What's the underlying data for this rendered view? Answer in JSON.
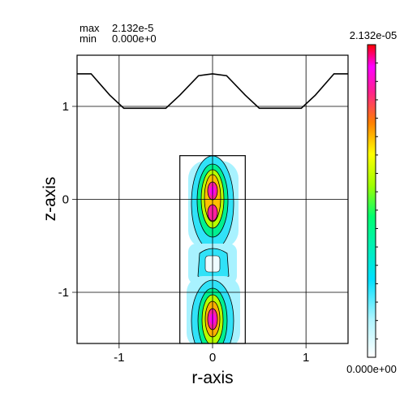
{
  "info": {
    "max_label": "max",
    "max_value": "2.132e-5",
    "min_label": "min",
    "min_value": "0.000e+0"
  },
  "colorbar": {
    "max_label": "2.132e-05",
    "min_label": "0.000e+00",
    "colors": [
      "#ffffff",
      "#00e0ff",
      "#00ff60",
      "#a0ff00",
      "#ffff00",
      "#ff8000",
      "#ff2080",
      "#ff00ff",
      "#ff0000"
    ]
  },
  "chart_data": {
    "type": "heatmap",
    "title": "",
    "xlabel": "r-axis",
    "ylabel": "z-axis",
    "xlim": [
      -1.45,
      1.45
    ],
    "ylim": [
      -1.55,
      1.55
    ],
    "xticks": [
      -1,
      0,
      1
    ],
    "yticks": [
      -1,
      0,
      1
    ],
    "xtick_labels": [
      "-1",
      "0",
      "1"
    ],
    "ytick_labels": [
      "-1",
      "0",
      "1"
    ],
    "grid": true,
    "value_range": [
      0,
      2.132e-05
    ],
    "domain_box": {
      "x": [
        -0.35,
        0.35
      ],
      "y": [
        -1.55,
        0.47
      ]
    },
    "boundary_curve": {
      "x": [
        -1.45,
        -1.3,
        -1.1,
        -0.95,
        -0.5,
        -0.35,
        -0.15,
        0,
        0.15,
        0.35,
        0.5,
        0.95,
        1.1,
        1.3,
        1.45
      ],
      "y": [
        1.35,
        1.35,
        1.12,
        0.98,
        0.98,
        1.12,
        1.33,
        1.35,
        1.33,
        1.12,
        0.98,
        0.98,
        1.12,
        1.35,
        1.35
      ]
    },
    "hot_spots": [
      {
        "r": 0,
        "z": 0.0,
        "rw": 0.09,
        "zw": 0.25,
        "value": 2.132e-05
      },
      {
        "r": 0,
        "z": -1.3,
        "rw": 0.09,
        "zw": 0.2,
        "value": 2e-05
      }
    ]
  }
}
